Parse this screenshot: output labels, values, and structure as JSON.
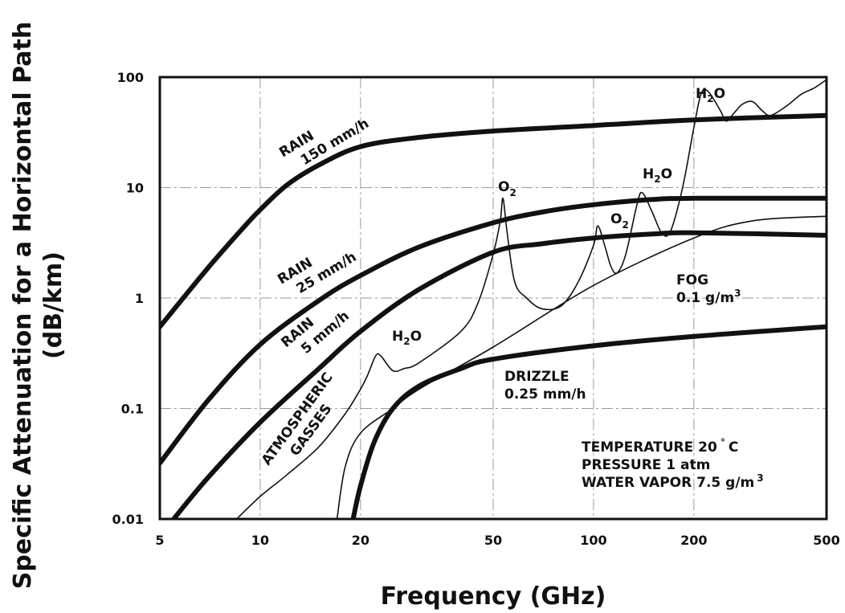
{
  "chart_data": {
    "type": "line",
    "x_scale": "log",
    "y_scale": "log",
    "xlim": [
      5,
      500
    ],
    "ylim": [
      0.01,
      100
    ],
    "grid": true,
    "xlabel": "Frequency (GHz)",
    "ylabel_line1": "Specific Attenuation for a Horizontal Path",
    "ylabel_line2": "(dB/km)",
    "x_ticks": [
      "5",
      "10",
      "20",
      "50",
      "100",
      "200",
      "500"
    ],
    "y_ticks": [
      "0.01",
      "0.1",
      "1",
      "10",
      "100"
    ],
    "series": [
      {
        "name": "RAIN 150 mm/h",
        "style": "thick",
        "points": [
          [
            5,
            0.55
          ],
          [
            7,
            1.9
          ],
          [
            9,
            4.5
          ],
          [
            10,
            6.3
          ],
          [
            12,
            10.5
          ],
          [
            15,
            16
          ],
          [
            20,
            23.5
          ],
          [
            30,
            28.5
          ],
          [
            50,
            32.5
          ],
          [
            100,
            36.5
          ],
          [
            200,
            41
          ],
          [
            500,
            45
          ]
        ]
      },
      {
        "name": "RAIN 25 mm/h",
        "style": "thick",
        "points": [
          [
            5,
            0.032
          ],
          [
            7,
            0.12
          ],
          [
            10,
            0.38
          ],
          [
            15,
            0.95
          ],
          [
            20,
            1.6
          ],
          [
            30,
            2.9
          ],
          [
            50,
            4.8
          ],
          [
            70,
            6.0
          ],
          [
            100,
            7.0
          ],
          [
            150,
            7.8
          ],
          [
            200,
            8.0
          ],
          [
            500,
            8.0
          ]
        ]
      },
      {
        "name": "RAIN 5 mm/h",
        "style": "thick",
        "points": [
          [
            5.5,
            0.01
          ],
          [
            7,
            0.024
          ],
          [
            10,
            0.075
          ],
          [
            15,
            0.23
          ],
          [
            20,
            0.5
          ],
          [
            30,
            1.2
          ],
          [
            50,
            2.6
          ],
          [
            70,
            3.1
          ],
          [
            100,
            3.5
          ],
          [
            150,
            3.8
          ],
          [
            200,
            3.9
          ],
          [
            500,
            3.7
          ]
        ]
      },
      {
        "name": "DRIZZLE 0.25 mm/h",
        "style": "thick",
        "points": [
          [
            19,
            0.01
          ],
          [
            20,
            0.02
          ],
          [
            22,
            0.05
          ],
          [
            25,
            0.1
          ],
          [
            30,
            0.16
          ],
          [
            40,
            0.23
          ],
          [
            50,
            0.28
          ],
          [
            100,
            0.37
          ],
          [
            200,
            0.45
          ],
          [
            500,
            0.55
          ]
        ]
      },
      {
        "name": "FOG 0.1 g/m3",
        "style": "thin",
        "points": [
          [
            17,
            0.01
          ],
          [
            18,
            0.03
          ],
          [
            20,
            0.06
          ],
          [
            25,
            0.1
          ],
          [
            30,
            0.15
          ],
          [
            50,
            0.36
          ],
          [
            100,
            1.3
          ],
          [
            200,
            3.5
          ],
          [
            300,
            5.0
          ],
          [
            500,
            5.5
          ]
        ]
      },
      {
        "name": "ATMOSPHERIC GASSES",
        "style": "thin",
        "points": [
          [
            8.5,
            0.01
          ],
          [
            10,
            0.016
          ],
          [
            12,
            0.025
          ],
          [
            15,
            0.045
          ],
          [
            18,
            0.09
          ],
          [
            20,
            0.15
          ],
          [
            21,
            0.2
          ],
          [
            22.2,
            0.3
          ],
          [
            23,
            0.3
          ],
          [
            25,
            0.22
          ],
          [
            27,
            0.23
          ],
          [
            30,
            0.26
          ],
          [
            40,
            0.5
          ],
          [
            45,
            0.9
          ],
          [
            50,
            2.5
          ],
          [
            52.5,
            5
          ],
          [
            53.5,
            8
          ],
          [
            55,
            4
          ],
          [
            58,
            1.4
          ],
          [
            63,
            1.0
          ],
          [
            70,
            0.8
          ],
          [
            80,
            0.85
          ],
          [
            90,
            1.4
          ],
          [
            100,
            3.0
          ],
          [
            103,
            4.5
          ],
          [
            108,
            3.0
          ],
          [
            113,
            1.9
          ],
          [
            118,
            1.7
          ],
          [
            125,
            2.5
          ],
          [
            135,
            7
          ],
          [
            140,
            9
          ],
          [
            150,
            6
          ],
          [
            160,
            3.9
          ],
          [
            170,
            4.0
          ],
          [
            185,
            10
          ],
          [
            200,
            35
          ],
          [
            210,
            70
          ],
          [
            220,
            75
          ],
          [
            240,
            50
          ],
          [
            250,
            40
          ],
          [
            265,
            48
          ],
          [
            280,
            57
          ],
          [
            300,
            60
          ],
          [
            320,
            50
          ],
          [
            340,
            45
          ],
          [
            380,
            55
          ],
          [
            420,
            70
          ],
          [
            460,
            80
          ],
          [
            500,
            95
          ]
        ]
      }
    ],
    "annotations": {
      "rain150_l1": "RAIN",
      "rain150_l2": "150  mm/h",
      "rain25_l1": "RAIN",
      "rain25_l2": "25  mm/h",
      "rain5_l1": "RAIN",
      "rain5_l2": "5  mm/h",
      "atm_l1": "ATMOSPHERIC",
      "atm_l2": "GASSES",
      "h2o_low": "H",
      "h2o_sub": "2",
      "h2o_tail": "O",
      "o2_main": "O",
      "o2_sub": "2",
      "fog_l1": "FOG",
      "fog_l2": "0.1 g/m",
      "fog_exp": "3",
      "drizzle_l1": "DRIZZLE",
      "drizzle_l2": "0.25 mm/h",
      "cond_temp": "TEMPERATURE 20",
      "cond_temp_deg": "°",
      "cond_temp_unit": "C",
      "cond_pressure": "PRESSURE 1 atm",
      "cond_vapor": "WATER VAPOR 7.5 g/m",
      "cond_vapor_exp": "3"
    }
  }
}
